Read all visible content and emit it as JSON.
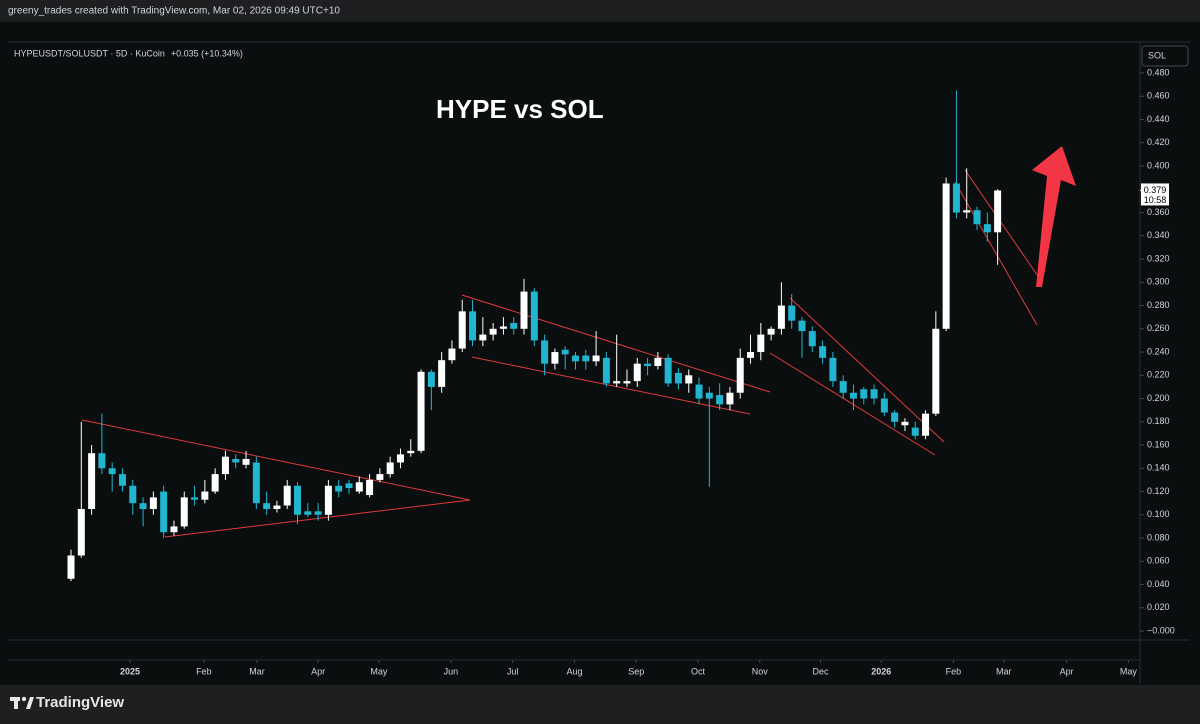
{
  "header": "greeny_trades created with TradingView.com, Mar 02, 2026 09:49 UTC+10",
  "footer_logo": "TradingView",
  "chart_data": {
    "type": "candlestick",
    "title": "HYPE vs SOL",
    "symbol": "HYPEUSDT/SOLUSDT · 5D · KuCoin",
    "change": "+0.035 (+10.34%)",
    "currency": "SOL",
    "last_price": 0.379,
    "countdown": "10:58",
    "up_color": "#ffffff",
    "down_color": "#22b5d0",
    "ylim": [
      -0.0077,
      0.5067
    ],
    "yticks": [
      {
        "value": 0.48,
        "label": "0.480"
      },
      {
        "value": 0.46,
        "label": "0.460"
      },
      {
        "value": 0.44,
        "label": "0.440"
      },
      {
        "value": 0.42,
        "label": "0.420"
      },
      {
        "value": 0.4,
        "label": "0.400"
      },
      {
        "value": 0.38,
        "label": "0.380"
      },
      {
        "value": 0.36,
        "label": "0.360"
      },
      {
        "value": 0.34,
        "label": "0.340"
      },
      {
        "value": 0.32,
        "label": "0.320"
      },
      {
        "value": 0.3,
        "label": "0.300"
      },
      {
        "value": 0.28,
        "label": "0.280"
      },
      {
        "value": 0.26,
        "label": "0.260"
      },
      {
        "value": 0.24,
        "label": "0.240"
      },
      {
        "value": 0.22,
        "label": "0.220"
      },
      {
        "value": 0.2,
        "label": "0.200"
      },
      {
        "value": 0.18,
        "label": "0.180"
      },
      {
        "value": 0.16,
        "label": "0.160"
      },
      {
        "value": 0.14,
        "label": "0.140"
      },
      {
        "value": 0.12,
        "label": "0.120"
      },
      {
        "value": 0.1,
        "label": "0.100"
      },
      {
        "value": 0.08,
        "label": "0.080"
      },
      {
        "value": 0.06,
        "label": "0.060"
      },
      {
        "value": 0.04,
        "label": "0.040"
      },
      {
        "value": 0.02,
        "label": "0.020"
      },
      {
        "value": 0,
        "label": "−0.000"
      }
    ],
    "xlim": [
      -6.12,
      103.83
    ],
    "xticks": [
      {
        "value": 5.73,
        "label": "2025"
      },
      {
        "value": 12.9,
        "label": "Feb"
      },
      {
        "value": 18.06,
        "label": "Mar"
      },
      {
        "value": 24.0,
        "label": "Apr"
      },
      {
        "value": 29.9,
        "label": "May"
      },
      {
        "value": 36.9,
        "label": "Jun"
      },
      {
        "value": 42.9,
        "label": "Jul"
      },
      {
        "value": 48.9,
        "label": "Aug"
      },
      {
        "value": 54.9,
        "label": "Sep"
      },
      {
        "value": 60.9,
        "label": "Oct"
      },
      {
        "value": 66.9,
        "label": "Nov"
      },
      {
        "value": 72.8,
        "label": "Dec"
      },
      {
        "value": 78.7,
        "label": "2026"
      },
      {
        "value": 85.7,
        "label": "Feb"
      },
      {
        "value": 90.6,
        "label": "Mar"
      },
      {
        "value": 96.7,
        "label": "Apr"
      },
      {
        "value": 102.7,
        "label": "May"
      }
    ],
    "ohlc": [
      [
        0.045,
        0.07,
        0.043,
        0.065
      ],
      [
        0.065,
        0.18,
        0.063,
        0.105
      ],
      [
        0.105,
        0.16,
        0.1,
        0.153
      ],
      [
        0.153,
        0.187,
        0.135,
        0.14
      ],
      [
        0.14,
        0.145,
        0.12,
        0.135
      ],
      [
        0.135,
        0.14,
        0.12,
        0.125
      ],
      [
        0.125,
        0.13,
        0.1,
        0.11
      ],
      [
        0.11,
        0.115,
        0.09,
        0.105
      ],
      [
        0.105,
        0.12,
        0.1,
        0.115
      ],
      [
        0.12,
        0.125,
        0.08,
        0.085
      ],
      [
        0.085,
        0.095,
        0.082,
        0.09
      ],
      [
        0.09,
        0.12,
        0.088,
        0.115
      ],
      [
        0.115,
        0.125,
        0.108,
        0.113
      ],
      [
        0.113,
        0.13,
        0.11,
        0.12
      ],
      [
        0.12,
        0.14,
        0.118,
        0.135
      ],
      [
        0.135,
        0.155,
        0.13,
        0.15
      ],
      [
        0.148,
        0.152,
        0.14,
        0.145
      ],
      [
        0.143,
        0.155,
        0.14,
        0.148
      ],
      [
        0.145,
        0.15,
        0.105,
        0.11
      ],
      [
        0.11,
        0.12,
        0.1,
        0.105
      ],
      [
        0.105,
        0.112,
        0.102,
        0.108
      ],
      [
        0.108,
        0.13,
        0.105,
        0.125
      ],
      [
        0.125,
        0.128,
        0.092,
        0.1
      ],
      [
        0.103,
        0.11,
        0.098,
        0.1
      ],
      [
        0.103,
        0.11,
        0.095,
        0.1
      ],
      [
        0.1,
        0.13,
        0.095,
        0.125
      ],
      [
        0.125,
        0.13,
        0.115,
        0.12
      ],
      [
        0.127,
        0.13,
        0.118,
        0.123
      ],
      [
        0.12,
        0.133,
        0.118,
        0.128
      ],
      [
        0.117,
        0.135,
        0.115,
        0.13
      ],
      [
        0.13,
        0.14,
        0.128,
        0.135
      ],
      [
        0.135,
        0.15,
        0.132,
        0.145
      ],
      [
        0.145,
        0.157,
        0.14,
        0.152
      ],
      [
        0.153,
        0.165,
        0.15,
        0.155
      ],
      [
        0.155,
        0.225,
        0.153,
        0.223
      ],
      [
        0.223,
        0.225,
        0.19,
        0.21
      ],
      [
        0.21,
        0.24,
        0.205,
        0.233
      ],
      [
        0.233,
        0.25,
        0.23,
        0.243
      ],
      [
        0.243,
        0.285,
        0.24,
        0.275
      ],
      [
        0.275,
        0.285,
        0.245,
        0.25
      ],
      [
        0.25,
        0.27,
        0.245,
        0.255
      ],
      [
        0.255,
        0.265,
        0.25,
        0.26
      ],
      [
        0.26,
        0.27,
        0.255,
        0.262
      ],
      [
        0.265,
        0.27,
        0.255,
        0.26
      ],
      [
        0.26,
        0.303,
        0.255,
        0.292
      ],
      [
        0.292,
        0.295,
        0.245,
        0.25
      ],
      [
        0.25,
        0.255,
        0.22,
        0.23
      ],
      [
        0.23,
        0.243,
        0.225,
        0.24
      ],
      [
        0.242,
        0.245,
        0.225,
        0.238
      ],
      [
        0.237,
        0.24,
        0.225,
        0.232
      ],
      [
        0.237,
        0.242,
        0.225,
        0.232
      ],
      [
        0.232,
        0.258,
        0.228,
        0.237
      ],
      [
        0.235,
        0.24,
        0.21,
        0.213
      ],
      [
        0.213,
        0.255,
        0.21,
        0.215
      ],
      [
        0.213,
        0.225,
        0.21,
        0.215
      ],
      [
        0.215,
        0.235,
        0.21,
        0.23
      ],
      [
        0.23,
        0.235,
        0.22,
        0.228
      ],
      [
        0.228,
        0.24,
        0.225,
        0.235
      ],
      [
        0.235,
        0.238,
        0.21,
        0.213
      ],
      [
        0.222,
        0.226,
        0.208,
        0.213
      ],
      [
        0.213,
        0.225,
        0.205,
        0.22
      ],
      [
        0.212,
        0.218,
        0.195,
        0.2
      ],
      [
        0.205,
        0.21,
        0.124,
        0.2
      ],
      [
        0.203,
        0.213,
        0.19,
        0.195
      ],
      [
        0.195,
        0.21,
        0.19,
        0.205
      ],
      [
        0.205,
        0.243,
        0.2,
        0.235
      ],
      [
        0.235,
        0.255,
        0.23,
        0.24
      ],
      [
        0.24,
        0.265,
        0.233,
        0.255
      ],
      [
        0.255,
        0.262,
        0.25,
        0.26
      ],
      [
        0.26,
        0.3,
        0.255,
        0.28
      ],
      [
        0.28,
        0.29,
        0.26,
        0.267
      ],
      [
        0.267,
        0.27,
        0.235,
        0.258
      ],
      [
        0.258,
        0.262,
        0.24,
        0.245
      ],
      [
        0.245,
        0.25,
        0.23,
        0.235
      ],
      [
        0.235,
        0.24,
        0.21,
        0.215
      ],
      [
        0.215,
        0.22,
        0.2,
        0.205
      ],
      [
        0.205,
        0.212,
        0.19,
        0.2
      ],
      [
        0.208,
        0.21,
        0.195,
        0.2
      ],
      [
        0.208,
        0.212,
        0.195,
        0.2
      ],
      [
        0.2,
        0.205,
        0.185,
        0.188
      ],
      [
        0.188,
        0.19,
        0.175,
        0.18
      ],
      [
        0.177,
        0.183,
        0.172,
        0.18
      ],
      [
        0.175,
        0.18,
        0.165,
        0.168
      ],
      [
        0.168,
        0.19,
        0.165,
        0.187
      ],
      [
        0.187,
        0.275,
        0.185,
        0.26
      ],
      [
        0.26,
        0.39,
        0.258,
        0.385
      ],
      [
        0.385,
        0.465,
        0.355,
        0.36
      ],
      [
        0.36,
        0.398,
        0.355,
        0.362
      ],
      [
        0.362,
        0.365,
        0.345,
        0.35
      ],
      [
        0.35,
        0.36,
        0.335,
        0.343
      ],
      [
        0.343,
        0.38,
        0.315,
        0.379
      ]
    ]
  }
}
